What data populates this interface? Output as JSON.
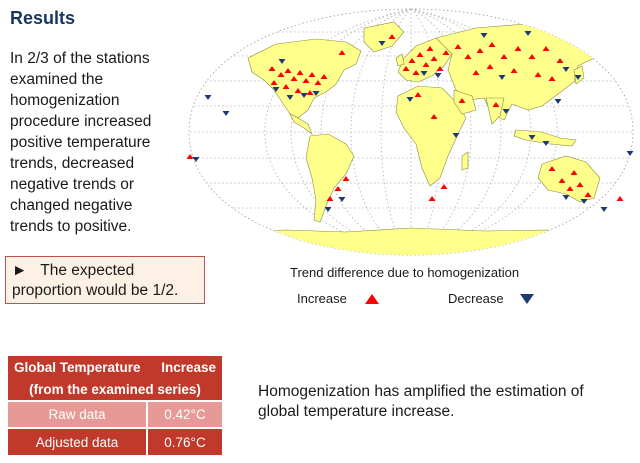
{
  "slide": {
    "title": "Results",
    "paragraph": "In 2/3 of the stations examined the homogenization procedure increased positive temperature trends,  decreased negative trends or changed negative trends to positive.",
    "callout_arrow": "►",
    "callout_text": "The expected proportion would be 1/2.",
    "conclusion": "Homogenization has amplified the estimation of global temperature increase."
  },
  "map": {
    "trend_title": "Trend difference due to homogenization",
    "increase_label": "Increase",
    "decrease_label": "Decrease",
    "increase_icon": "red-up-triangle",
    "decrease_icon": "navy-down-triangle",
    "colors": {
      "land": "#ffff8c",
      "increase": "#ff0000",
      "decrease": "#1f3a6e",
      "graticule": "#b0b0b0"
    }
  },
  "table": {
    "header_left_line1": "Global Temperature",
    "header_right": "Increase",
    "header_left_line2": "(from the examined series)",
    "rows": [
      {
        "label": "Raw data",
        "value": "0.42°C"
      },
      {
        "label": "Adjusted data",
        "value": "0.76°C"
      }
    ],
    "colors": {
      "header": "#c0392b",
      "row_light": "#e79a95",
      "row_dark": "#c0392b"
    }
  }
}
